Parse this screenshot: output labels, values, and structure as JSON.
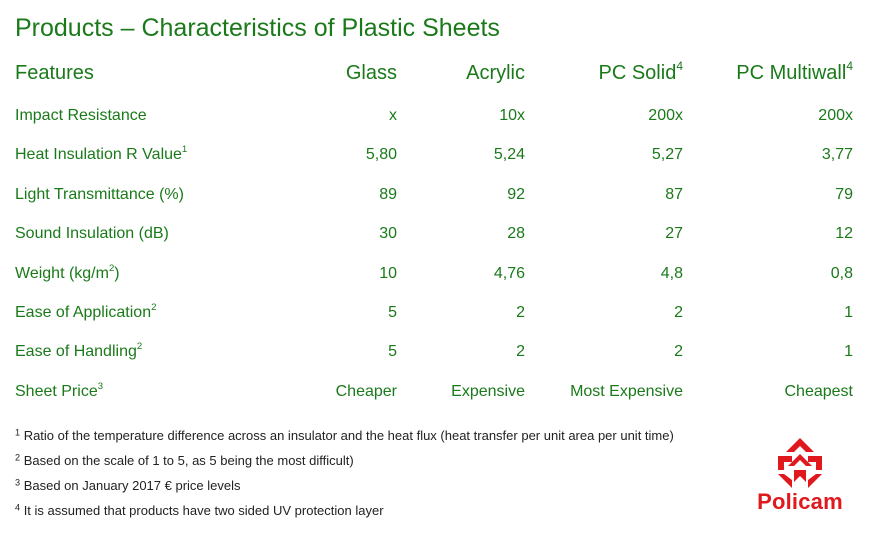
{
  "title": "Products – Characteristics of Plastic Sheets",
  "table": {
    "columns": [
      {
        "label": "Features",
        "sup": ""
      },
      {
        "label": "Glass",
        "sup": ""
      },
      {
        "label": "Acrylic",
        "sup": ""
      },
      {
        "label": "PC Solid",
        "sup": "4"
      },
      {
        "label": "PC Multiwall",
        "sup": "4"
      }
    ],
    "rows": [
      {
        "label": "Impact Resistance",
        "sup": "",
        "values": [
          "x",
          "10x",
          "200x",
          "200x"
        ]
      },
      {
        "label": "Heat Insulation R Value",
        "sup": "1",
        "values": [
          "5,80",
          "5,24",
          "5,27",
          "3,77"
        ]
      },
      {
        "label": "Light Transmittance (%)",
        "sup": "",
        "values": [
          "89",
          "92",
          "87",
          "79"
        ]
      },
      {
        "label": "Sound Insulation (dB)",
        "sup": "",
        "values": [
          "30",
          "28",
          "27",
          "12"
        ]
      },
      {
        "label_pre": "Weight (kg/m",
        "label_sup": "2",
        "label_post": ")",
        "values": [
          "10",
          "4,76",
          "4,8",
          "0,8"
        ]
      },
      {
        "label": "Ease of Application",
        "sup": "2",
        "values": [
          "5",
          "2",
          "2",
          "1"
        ]
      },
      {
        "label": "Ease of Handling",
        "sup": "2",
        "values": [
          "5",
          "2",
          "2",
          "1"
        ]
      },
      {
        "label": "Sheet Price",
        "sup": "3",
        "values": [
          "Cheaper",
          "Expensive",
          "Most Expensive",
          "Cheapest"
        ]
      }
    ]
  },
  "footnotes": [
    {
      "num": "1",
      "text": "Ratio of the temperature difference across an insulator and the heat flux (heat transfer per unit area per unit time)"
    },
    {
      "num": "2",
      "text": "Based on the scale of 1 to 5, as 5 being the most difficult)"
    },
    {
      "num": "3",
      "text": "Based on January 2017 € price levels"
    },
    {
      "num": "4",
      "text": "It is assumed that products have two sided UV protection layer"
    }
  ],
  "logo": {
    "text": "Policam",
    "color": "#e0191e"
  },
  "colors": {
    "text_green": "#1a7a1a",
    "footnote": "#222222"
  }
}
